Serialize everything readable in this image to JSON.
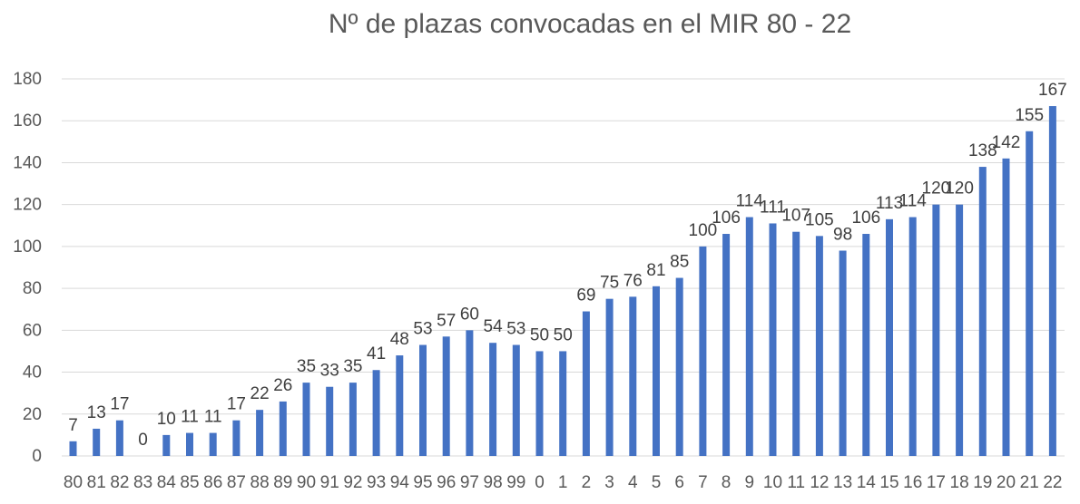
{
  "chart_data": {
    "type": "bar",
    "title": "Nº de plazas convocadas en el MIR 80 - 22",
    "xlabel": "",
    "ylabel": "",
    "categories": [
      "80",
      "81",
      "82",
      "83",
      "84",
      "85",
      "86",
      "87",
      "88",
      "89",
      "90",
      "91",
      "92",
      "93",
      "94",
      "95",
      "96",
      "97",
      "98",
      "99",
      "0",
      "1",
      "2",
      "3",
      "4",
      "5",
      "6",
      "7",
      "8",
      "9",
      "10",
      "11",
      "12",
      "13",
      "14",
      "15",
      "16",
      "17",
      "18",
      "19",
      "20",
      "21",
      "22"
    ],
    "values": [
      7,
      13,
      17,
      0,
      10,
      11,
      11,
      17,
      22,
      26,
      35,
      33,
      35,
      41,
      48,
      53,
      57,
      60,
      54,
      53,
      50,
      50,
      69,
      75,
      76,
      81,
      85,
      100,
      106,
      114,
      111,
      107,
      105,
      98,
      106,
      113,
      114,
      120,
      120,
      138,
      142,
      155,
      167
    ],
    "ylim": [
      0,
      180
    ],
    "yticks": [
      0,
      20,
      40,
      60,
      80,
      100,
      120,
      140,
      160,
      180
    ],
    "grid": true,
    "legend": "none",
    "data_labels": true,
    "colors": {
      "bar": "#4472c4",
      "grid": "#d9d9d9",
      "text": "#595959"
    }
  }
}
